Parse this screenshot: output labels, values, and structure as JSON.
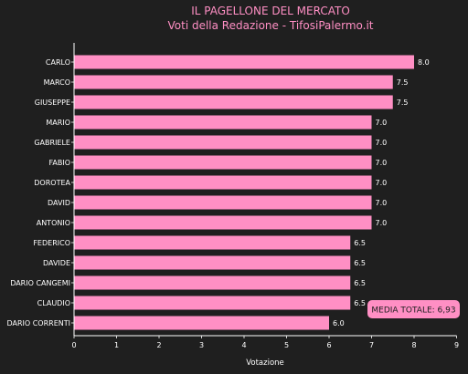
{
  "chart_data": {
    "type": "bar",
    "orientation": "horizontal",
    "title": "IL PAGELLONE DEL MERCATO",
    "subtitle": "Voti della Redazione - TifosiPalermo.it",
    "xlabel": "Votazione",
    "xlim": [
      0,
      9
    ],
    "xticks": [
      0,
      1,
      2,
      3,
      4,
      5,
      6,
      7,
      8,
      9
    ],
    "categories": [
      "CARLO",
      "MARCO",
      "GIUSEPPE",
      "MARIO",
      "GABRIELE",
      "FABIO",
      "DOROTEA",
      "DAVID",
      "ANTONIO",
      "FEDERICO",
      "DAVIDE",
      "DARIO CANGEMI",
      "CLAUDIO",
      "DARIO CORRENTI"
    ],
    "values": [
      8.0,
      7.5,
      7.5,
      7.0,
      7.0,
      7.0,
      7.0,
      7.0,
      7.0,
      6.5,
      6.5,
      6.5,
      6.5,
      6.0
    ],
    "value_labels": [
      "8.0",
      "7.5",
      "7.5",
      "7.0",
      "7.0",
      "7.0",
      "7.0",
      "7.0",
      "7.0",
      "6.5",
      "6.5",
      "6.5",
      "6.5",
      "6.0"
    ],
    "annotation": "MEDIA TOTALE: 6,93",
    "grid": false,
    "colors": {
      "background": "#1f1f1f",
      "bar": "#ff8fc4",
      "title": "#ff8fc4",
      "text": "#ffffff",
      "annotation_box": "#ff8fc4"
    }
  }
}
